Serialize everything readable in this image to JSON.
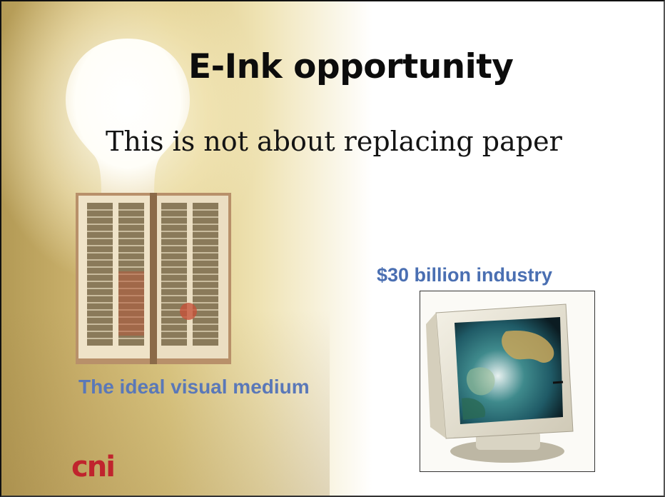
{
  "slide": {
    "title": "E-Ink opportunity",
    "subtitle": "This is not about replacing paper",
    "left_caption": "The ideal visual medium",
    "right_caption": "$30 billion industry",
    "logo_text": "cni"
  },
  "images": {
    "bulb": "light-bulb-illustration",
    "book": "illuminated-manuscript-pages",
    "monitor": "crt-monitor-showing-earth"
  },
  "colors": {
    "caption_blue": "#5a78b8",
    "logo_red": "#c0242d",
    "background_warm": "#d8c27a"
  }
}
